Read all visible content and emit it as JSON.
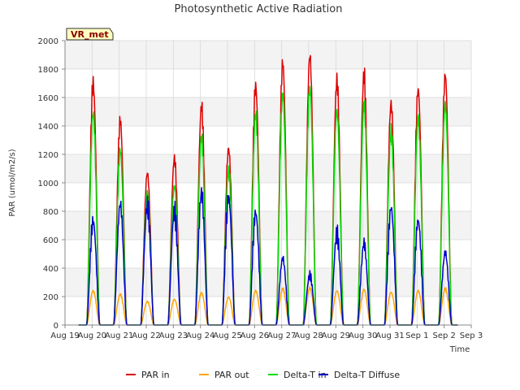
{
  "chart_data": {
    "type": "line",
    "title": "Photosynthetic Active Radiation",
    "xlabel": "Time",
    "ylabel": "PAR (umol/m2/s)",
    "ylim": [
      0,
      2000
    ],
    "yticks": [
      0,
      200,
      400,
      600,
      800,
      1000,
      1200,
      1400,
      1600,
      1800,
      2000
    ],
    "xlim": [
      0,
      15
    ],
    "xtick_labels": [
      "Aug 19",
      "Aug 20",
      "Aug 21",
      "Aug 22",
      "Aug 23",
      "Aug 24",
      "Aug 25",
      "Aug 26",
      "Aug 27",
      "Aug 28",
      "Aug 29",
      "Aug 30",
      "Aug 31",
      "Sep 1",
      "Sep 2",
      "Sep 3"
    ],
    "grid": true,
    "badge": "VR_met",
    "day_start_index": 0.5,
    "series": [
      {
        "name": "PAR in",
        "color": "#dd0000",
        "daily_peaks": [
          1700,
          1440,
          1070,
          1170,
          1540,
          1240,
          1680,
          1845,
          1895,
          1715,
          1760,
          1555,
          1655,
          1760
        ]
      },
      {
        "name": "PAR out",
        "color": "#ffa500",
        "daily_peaks": [
          240,
          215,
          165,
          180,
          225,
          195,
          240,
          255,
          260,
          240,
          250,
          230,
          240,
          255
        ]
      },
      {
        "name": "Delta-T in",
        "color": "#00dd00",
        "daily_peaks": [
          1490,
          1230,
          930,
          980,
          1320,
          1080,
          1480,
          1630,
          1665,
          1505,
          1550,
          1355,
          1450,
          1555
        ]
      },
      {
        "name": "Delta-T Diffuse",
        "color": "#0000cc",
        "daily_peaks": [
          730,
          850,
          840,
          800,
          930,
          900,
          790,
          470,
          350,
          640,
          575,
          825,
          735,
          510
        ]
      }
    ]
  }
}
